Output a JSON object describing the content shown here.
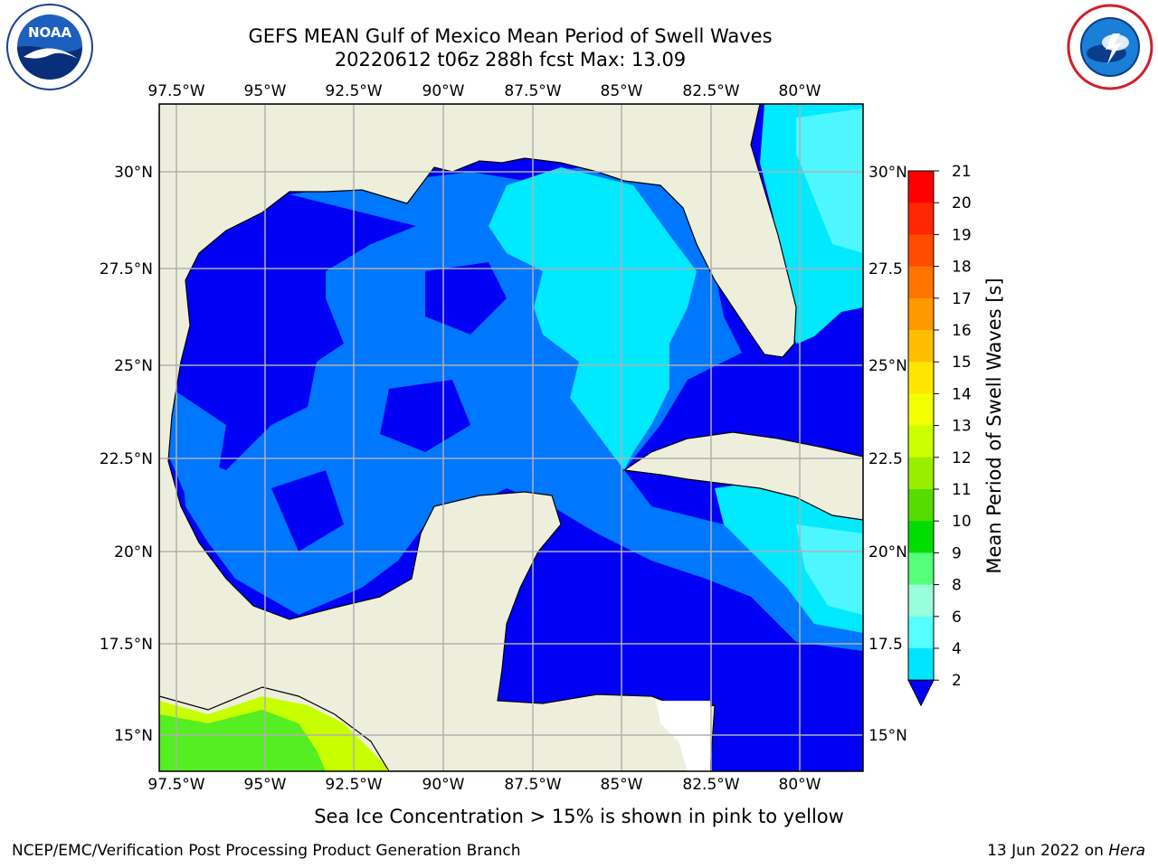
{
  "header": {
    "title_line1": "GEFS MEAN Gulf of Mexico Mean Period of Swell Waves",
    "title_line2": "20220612 t06z 288h fcst   Max: 13.09"
  },
  "logos": {
    "left": {
      "icon": "noaa-logo-icon",
      "text": "NOAA"
    },
    "right": {
      "icon": "nws-logo-icon"
    }
  },
  "map": {
    "lon_labels": [
      "97.5°W",
      "95°W",
      "92.5°W",
      "90°W",
      "87.5°W",
      "85°W",
      "82.5°W",
      "80°W"
    ],
    "lat_labels_left": [
      "30°N",
      "27.5°N",
      "25°N",
      "22.5°N",
      "20°N",
      "17.5°N",
      "15°N"
    ],
    "lat_labels_right": [
      "30°N",
      "27.5",
      "25°N",
      "22.5",
      "20°N",
      "17.5",
      "15°N"
    ],
    "colors": {
      "land": "#eeeedc",
      "water_2": "#0000f5",
      "water_4": "#0077ff",
      "water_6": "#00e9ff",
      "water_8": "#4ef6ff",
      "green": "#55ee22",
      "lime": "#c8ff00",
      "grid": "#b0b0b0"
    }
  },
  "colorbar": {
    "label": "Mean Period of Swell Waves [s]",
    "ticks": [
      "21",
      "20",
      "19",
      "18",
      "17",
      "16",
      "15",
      "14",
      "13",
      "12",
      "11",
      "10",
      "9",
      "8",
      "6",
      "4",
      "2"
    ],
    "colors": [
      "#ff0000",
      "#ff2600",
      "#ff4c00",
      "#ff7300",
      "#ff9900",
      "#ffbf00",
      "#ffe600",
      "#f2ff00",
      "#ccff00",
      "#99ee00",
      "#55dd00",
      "#00dd00",
      "#55ff77",
      "#99ffdd",
      "#55ffff",
      "#00e5ff",
      "#0077ff",
      "#0000ff"
    ]
  },
  "ice_note": "Sea Ice Concentration > 15% is shown in pink to yellow",
  "footer": {
    "left": "NCEP/EMC/Verification Post Processing Product Generation Branch",
    "right_date": "13 Jun 2022 on ",
    "right_host": "Hera"
  }
}
